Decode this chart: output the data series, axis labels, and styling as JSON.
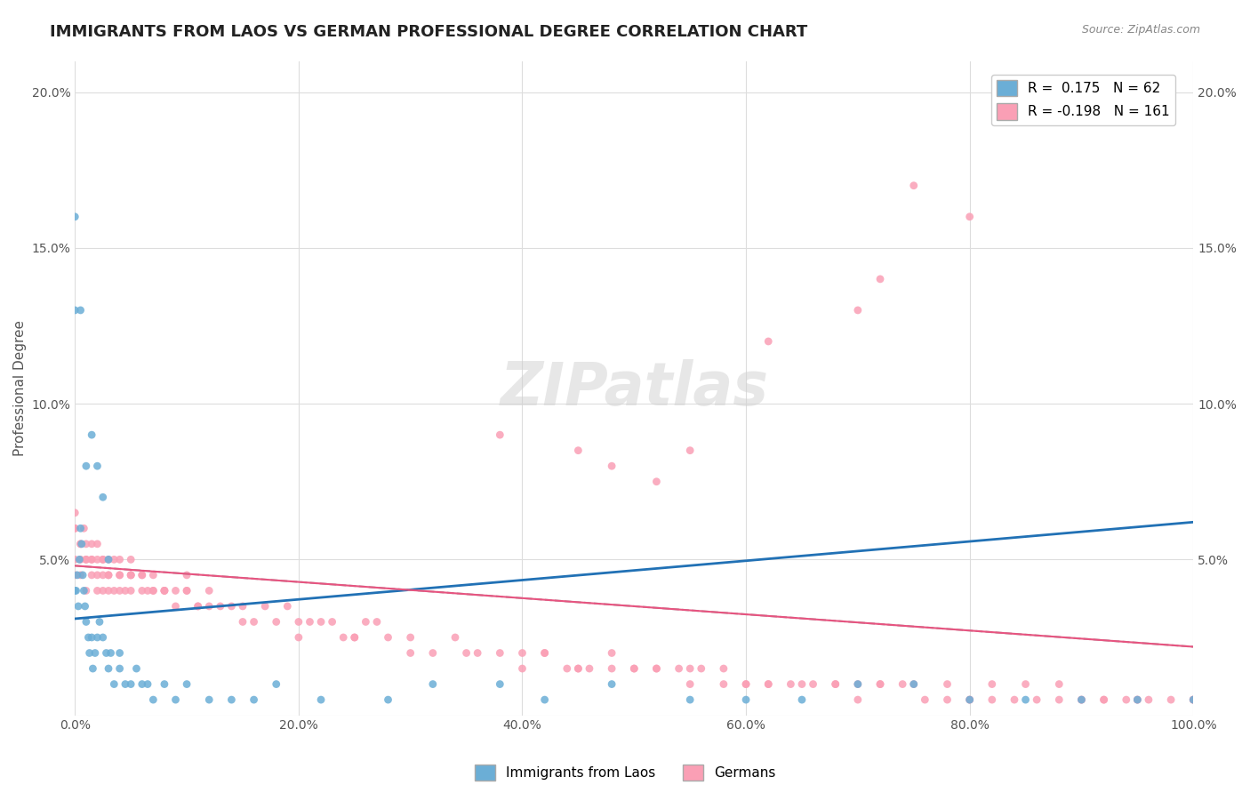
{
  "title": "IMMIGRANTS FROM LAOS VS GERMAN PROFESSIONAL DEGREE CORRELATION CHART",
  "source": "Source: ZipAtlas.com",
  "xlabel": "",
  "ylabel": "Professional Degree",
  "xlim": [
    0.0,
    1.0
  ],
  "ylim": [
    0.0,
    0.21
  ],
  "xtick_labels": [
    "0.0%",
    "20.0%",
    "40.0%",
    "60.0%",
    "80.0%",
    "100.0%"
  ],
  "xtick_vals": [
    0.0,
    0.2,
    0.4,
    0.6,
    0.8,
    1.0
  ],
  "ytick_labels": [
    "",
    "5.0%",
    "10.0%",
    "15.0%",
    "20.0%"
  ],
  "ytick_vals": [
    0.0,
    0.05,
    0.1,
    0.15,
    0.2
  ],
  "watermark": "ZIPatlas",
  "legend_entries": [
    {
      "label": "R =  0.175   N = 62",
      "color": "#6baed6"
    },
    {
      "label": "R = -0.198   N = 161",
      "color": "#fa9fb5"
    }
  ],
  "series_laos": {
    "color": "#6baed6",
    "R": 0.175,
    "N": 62,
    "trend_color": "#2171b5",
    "scatter_x": [
      0.0,
      0.001,
      0.002,
      0.003,
      0.004,
      0.005,
      0.006,
      0.007,
      0.008,
      0.009,
      0.01,
      0.012,
      0.013,
      0.015,
      0.016,
      0.018,
      0.02,
      0.022,
      0.025,
      0.028,
      0.03,
      0.032,
      0.035,
      0.04,
      0.04,
      0.045,
      0.05,
      0.055,
      0.06,
      0.065,
      0.07,
      0.08,
      0.09,
      0.1,
      0.12,
      0.14,
      0.16,
      0.18,
      0.22,
      0.28,
      0.32,
      0.38,
      0.42,
      0.48,
      0.55,
      0.6,
      0.65,
      0.7,
      0.75,
      0.8,
      0.85,
      0.9,
      0.95,
      1.0,
      0.0,
      0.0,
      0.005,
      0.01,
      0.015,
      0.02,
      0.025,
      0.03
    ],
    "scatter_y": [
      0.04,
      0.04,
      0.045,
      0.035,
      0.05,
      0.06,
      0.055,
      0.045,
      0.04,
      0.035,
      0.03,
      0.025,
      0.02,
      0.025,
      0.015,
      0.02,
      0.025,
      0.03,
      0.025,
      0.02,
      0.015,
      0.02,
      0.01,
      0.015,
      0.02,
      0.01,
      0.01,
      0.015,
      0.01,
      0.01,
      0.005,
      0.01,
      0.005,
      0.01,
      0.005,
      0.005,
      0.005,
      0.01,
      0.005,
      0.005,
      0.01,
      0.01,
      0.005,
      0.01,
      0.005,
      0.005,
      0.005,
      0.01,
      0.01,
      0.005,
      0.005,
      0.005,
      0.005,
      0.005,
      0.16,
      0.13,
      0.13,
      0.08,
      0.09,
      0.08,
      0.07,
      0.05
    ],
    "trend_x": [
      0.0,
      1.0
    ],
    "trend_y_start": 0.031,
    "trend_y_end": 0.062
  },
  "series_german": {
    "color": "#fa9fb5",
    "R": -0.198,
    "N": 161,
    "trend_color": "#e75480",
    "scatter_x": [
      0.0,
      0.0,
      0.0,
      0.005,
      0.005,
      0.005,
      0.01,
      0.01,
      0.015,
      0.015,
      0.02,
      0.02,
      0.025,
      0.025,
      0.03,
      0.03,
      0.035,
      0.04,
      0.04,
      0.045,
      0.05,
      0.05,
      0.06,
      0.06,
      0.07,
      0.07,
      0.08,
      0.08,
      0.09,
      0.1,
      0.1,
      0.11,
      0.12,
      0.13,
      0.14,
      0.15,
      0.16,
      0.17,
      0.18,
      0.19,
      0.2,
      0.21,
      0.22,
      0.23,
      0.24,
      0.25,
      0.26,
      0.27,
      0.28,
      0.3,
      0.32,
      0.34,
      0.36,
      0.38,
      0.4,
      0.42,
      0.44,
      0.46,
      0.48,
      0.5,
      0.52,
      0.54,
      0.56,
      0.58,
      0.6,
      0.62,
      0.64,
      0.66,
      0.68,
      0.7,
      0.72,
      0.74,
      0.76,
      0.78,
      0.8,
      0.82,
      0.84,
      0.86,
      0.88,
      0.9,
      0.92,
      0.94,
      0.96,
      0.98,
      1.0,
      0.45,
      0.55,
      0.48,
      0.52,
      0.38,
      0.62,
      0.7,
      0.72,
      0.75,
      0.8,
      0.0,
      0.0,
      0.005,
      0.008,
      0.01,
      0.01,
      0.015,
      0.015,
      0.02,
      0.02,
      0.025,
      0.025,
      0.03,
      0.03,
      0.035,
      0.04,
      0.04,
      0.05,
      0.05,
      0.05,
      0.06,
      0.065,
      0.07,
      0.08,
      0.09,
      0.1,
      0.11,
      0.12,
      0.15,
      0.2,
      0.25,
      0.3,
      0.35,
      0.4,
      0.45,
      0.5,
      0.55,
      0.6,
      0.65,
      0.7,
      0.75,
      0.8,
      0.85,
      0.9,
      0.95,
      1.0,
      0.42,
      0.45,
      0.48,
      0.52,
      0.55,
      0.58,
      0.62,
      0.68,
      0.72,
      0.78,
      0.82,
      0.88,
      0.92,
      0.95,
      1.0
    ],
    "scatter_y": [
      0.045,
      0.05,
      0.06,
      0.045,
      0.05,
      0.055,
      0.04,
      0.05,
      0.045,
      0.05,
      0.04,
      0.045,
      0.04,
      0.045,
      0.04,
      0.045,
      0.04,
      0.04,
      0.045,
      0.04,
      0.04,
      0.045,
      0.04,
      0.045,
      0.04,
      0.045,
      0.04,
      0.04,
      0.035,
      0.04,
      0.045,
      0.035,
      0.04,
      0.035,
      0.035,
      0.035,
      0.03,
      0.035,
      0.03,
      0.035,
      0.03,
      0.03,
      0.03,
      0.03,
      0.025,
      0.025,
      0.03,
      0.03,
      0.025,
      0.025,
      0.02,
      0.025,
      0.02,
      0.02,
      0.02,
      0.02,
      0.015,
      0.015,
      0.015,
      0.015,
      0.015,
      0.015,
      0.015,
      0.01,
      0.01,
      0.01,
      0.01,
      0.01,
      0.01,
      0.005,
      0.01,
      0.01,
      0.005,
      0.005,
      0.005,
      0.005,
      0.005,
      0.005,
      0.005,
      0.005,
      0.005,
      0.005,
      0.005,
      0.005,
      0.005,
      0.085,
      0.085,
      0.08,
      0.075,
      0.09,
      0.12,
      0.13,
      0.14,
      0.17,
      0.16,
      0.06,
      0.065,
      0.055,
      0.06,
      0.05,
      0.055,
      0.05,
      0.055,
      0.05,
      0.055,
      0.05,
      0.05,
      0.045,
      0.05,
      0.05,
      0.045,
      0.05,
      0.045,
      0.045,
      0.05,
      0.045,
      0.04,
      0.04,
      0.04,
      0.04,
      0.04,
      0.035,
      0.035,
      0.03,
      0.025,
      0.025,
      0.02,
      0.02,
      0.015,
      0.015,
      0.015,
      0.01,
      0.01,
      0.01,
      0.01,
      0.01,
      0.005,
      0.01,
      0.005,
      0.005,
      0.005,
      0.02,
      0.015,
      0.02,
      0.015,
      0.015,
      0.015,
      0.01,
      0.01,
      0.01,
      0.01,
      0.01,
      0.01,
      0.005,
      0.005,
      0.005
    ],
    "trend_x": [
      0.0,
      1.0
    ],
    "trend_y_start": 0.048,
    "trend_y_end": 0.022
  },
  "background_color": "#ffffff",
  "grid_color": "#dddddd",
  "title_color": "#222222",
  "title_fontsize": 13,
  "axis_label_fontsize": 11,
  "tick_fontsize": 10,
  "watermark_color": "#d0d0d0",
  "watermark_fontsize": 48
}
